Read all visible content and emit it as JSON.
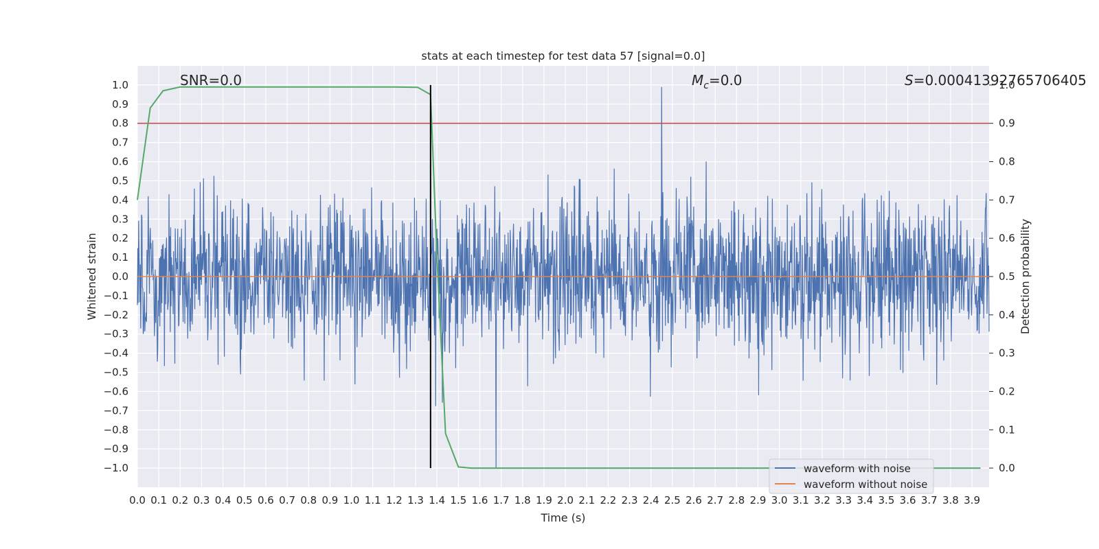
{
  "chart_data": {
    "type": "line",
    "title": "stats at each timestep for test data 57 [signal=0.0]",
    "xlabel": "Time (s)",
    "ylabel_left": "Whitened strain",
    "ylabel_right": "Detection probability",
    "xlim": [
      0.0,
      3.98
    ],
    "ylim_left": [
      -1.1,
      1.1
    ],
    "ylim_right": [
      -0.05,
      1.05
    ],
    "x_ticks": [
      "0.0",
      "0.1",
      "0.2",
      "0.3",
      "0.4",
      "0.5",
      "0.6",
      "0.7",
      "0.8",
      "0.9",
      "1.0",
      "1.1",
      "1.2",
      "1.3",
      "1.4",
      "1.5",
      "1.6",
      "1.7",
      "1.8",
      "1.9",
      "2.0",
      "2.1",
      "2.2",
      "2.3",
      "2.4",
      "2.5",
      "2.6",
      "2.7",
      "2.8",
      "2.9",
      "3.0",
      "3.1",
      "3.2",
      "3.3",
      "3.4",
      "3.5",
      "3.6",
      "3.7",
      "3.8",
      "3.9"
    ],
    "y_ticks_left": [
      "1.0",
      "0.9",
      "0.8",
      "0.7",
      "0.6",
      "0.5",
      "0.4",
      "0.3",
      "0.2",
      "0.1",
      "0.0",
      "−0.1",
      "−0.2",
      "−0.3",
      "−0.4",
      "−0.5",
      "−0.6",
      "−0.7",
      "−0.8",
      "−0.9",
      "−1.0"
    ],
    "y_ticks_right": [
      "1.0",
      "0.9",
      "0.8",
      "0.7",
      "0.6",
      "0.5",
      "0.4",
      "0.3",
      "0.2",
      "0.1",
      "0.0"
    ],
    "annotations": {
      "snr": "SNR=0.0",
      "mc_symbol": "M",
      "mc_sub": "c",
      "mc_value": "=0.0",
      "s_symbol": "S",
      "s_value": "=0.00041392765706405"
    },
    "detection_threshold": 0.9,
    "marker_time": 1.37,
    "series": [
      {
        "name": "waveform with noise",
        "color": "#4c72b0",
        "axis": "left",
        "description_amplitude": "noise in approx [-1.0, 1.0]",
        "n_samples": 2048,
        "peak_max": 0.99,
        "peak_min": -1.0
      },
      {
        "name": "waveform without noise",
        "color": "#dd8452",
        "axis": "left",
        "values_constant": 0.0
      },
      {
        "name": "detection probability",
        "color": "#55a868",
        "axis": "right",
        "x": [
          0.0,
          0.06,
          0.12,
          0.2,
          0.3,
          0.5,
          0.8,
          1.0,
          1.2,
          1.31,
          1.37,
          1.4,
          1.44,
          1.5,
          1.56,
          1.7,
          2.0,
          3.0,
          3.94
        ],
        "y": [
          0.7,
          0.94,
          0.985,
          0.995,
          0.995,
          0.995,
          0.995,
          0.995,
          0.995,
          0.994,
          0.975,
          0.55,
          0.09,
          0.003,
          0.0,
          0.0,
          0.0,
          0.0,
          0.0
        ]
      }
    ],
    "threshold_color": "#c44e52",
    "marker_color": "#000000",
    "legend": {
      "placement": "lower-right",
      "entries": [
        {
          "label": "waveform with noise",
          "color": "#4c72b0"
        },
        {
          "label": "waveform without noise",
          "color": "#dd8452"
        }
      ]
    }
  }
}
